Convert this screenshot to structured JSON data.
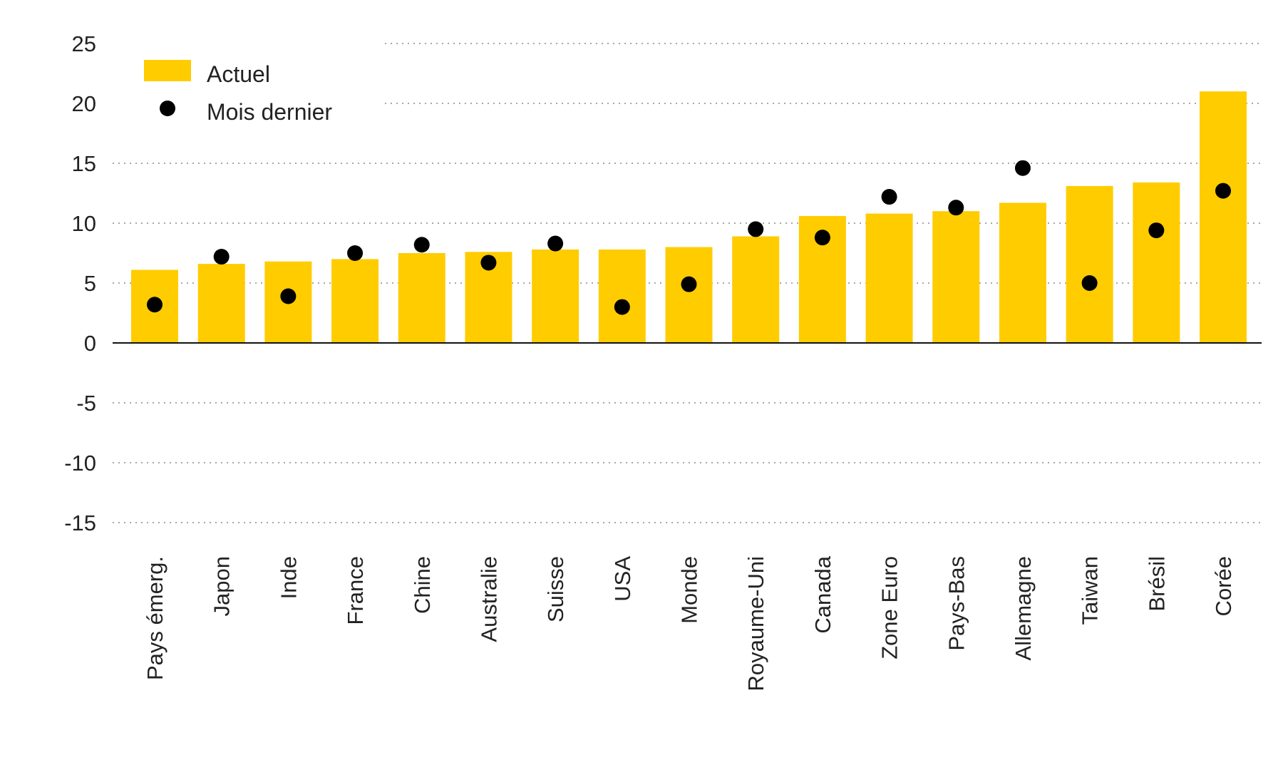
{
  "chart_data": {
    "type": "bar",
    "title": "",
    "xlabel": "",
    "ylabel": "",
    "ylim": [
      -15,
      25
    ],
    "yticks": [
      25,
      20,
      15,
      10,
      5,
      0,
      -5,
      -10,
      -15
    ],
    "ytick_labels": [
      "25",
      "20",
      "15",
      "10",
      "5",
      "0",
      "-5",
      "-10",
      "-15"
    ],
    "grid": true,
    "legend_position": "top-left",
    "categories": [
      "Pays émerg.",
      "Japon",
      "Inde",
      "France",
      "Chine",
      "Australie",
      "Suisse",
      "USA",
      "Monde",
      "Royaume-Uni",
      "Canada",
      "Zone Euro",
      "Pays-Bas",
      "Allemagne",
      "Taiwan",
      "Brésil",
      "Corée"
    ],
    "series": [
      {
        "name": "Actuel",
        "kind": "bar",
        "color": "#FFCC00",
        "values": [
          6.1,
          6.6,
          6.8,
          7.0,
          7.5,
          7.6,
          7.8,
          7.8,
          8.0,
          8.9,
          10.6,
          10.8,
          11.0,
          11.7,
          13.1,
          13.4,
          21.0
        ]
      },
      {
        "name": "Mois dernier",
        "kind": "dot",
        "color": "#000000",
        "values": [
          3.2,
          7.2,
          3.9,
          7.5,
          8.2,
          6.7,
          8.3,
          3.0,
          4.9,
          9.5,
          8.8,
          12.2,
          11.3,
          14.6,
          5.0,
          9.4,
          12.7
        ]
      }
    ]
  }
}
